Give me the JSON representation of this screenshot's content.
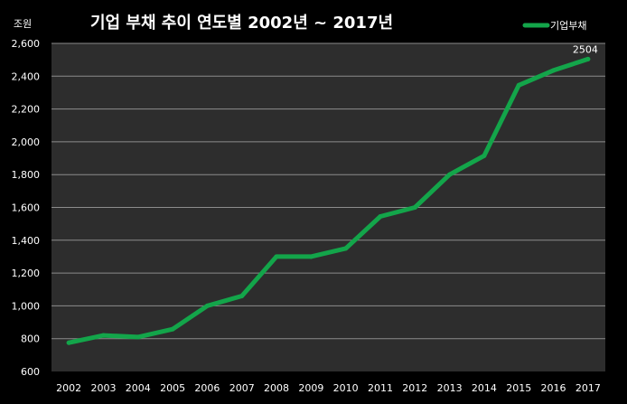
{
  "chart_data": {
    "type": "line",
    "title": "기업 부채 추이 연도별  2002년 ~ 2017년",
    "unit_label": "조원",
    "legend_entry": "기업부채",
    "series_color": "#13A54A",
    "plot_background": "#2D2D2D",
    "background": "#000000",
    "grid": true,
    "legend_position": "top-right",
    "ylim": [
      600,
      2600
    ],
    "yticks": [
      600,
      800,
      1000,
      1200,
      1400,
      1600,
      1800,
      2000,
      2200,
      2400,
      2600
    ],
    "ytick_labels": [
      "600",
      "800",
      "1,000",
      "1,200",
      "1,400",
      "1,600",
      "1,800",
      "2,000",
      "2,200",
      "2,400",
      "2,600"
    ],
    "x": [
      "2002",
      "2003",
      "2004",
      "2005",
      "2006",
      "2007",
      "2008",
      "2009",
      "2010",
      "2011",
      "2012",
      "2013",
      "2014",
      "2015",
      "2016",
      "2017"
    ],
    "series": [
      {
        "name": "기업부채",
        "values": [
          775,
          820,
          810,
          858,
          1000,
          1060,
          1300,
          1300,
          1350,
          1545,
          1600,
          1800,
          1915,
          2345,
          2435,
          2504
        ]
      }
    ],
    "data_labels": [
      {
        "index": 15,
        "text": "2504"
      }
    ]
  }
}
